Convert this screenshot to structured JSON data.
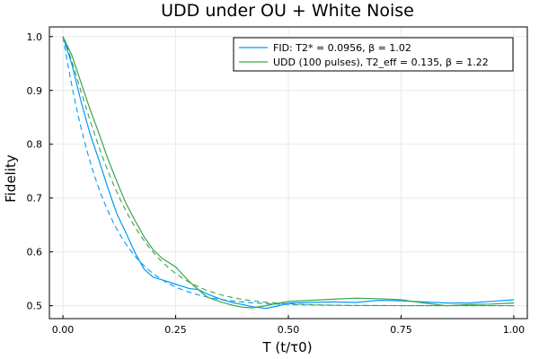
{
  "chart_data": {
    "type": "line",
    "title": "UDD under OU + White Noise",
    "xlabel": "T (t/τ0)",
    "ylabel": "Fidelity",
    "xlim": [
      -0.03,
      1.03
    ],
    "ylim": [
      0.476,
      1.018
    ],
    "xticks": [
      0.0,
      0.25,
      0.5,
      0.75,
      1.0
    ],
    "xtick_labels": [
      "0.00",
      "0.25",
      "0.50",
      "0.75",
      "1.00"
    ],
    "yticks": [
      0.5,
      0.6,
      0.7,
      0.8,
      0.9,
      1.0
    ],
    "ytick_labels": [
      "0.5",
      "0.6",
      "0.7",
      "0.8",
      "0.9",
      "1.0"
    ],
    "grid": true,
    "legend_position": "top-right",
    "series": [
      {
        "name": "FID: T2* = 0.0956, β = 1.02",
        "color": "#009af9",
        "style": "solid",
        "x": [
          0.0,
          0.02,
          0.04,
          0.06,
          0.08,
          0.1,
          0.12,
          0.14,
          0.16,
          0.18,
          0.2,
          0.22,
          0.25,
          0.28,
          0.3,
          0.32,
          0.35,
          0.38,
          0.4,
          0.42,
          0.45,
          0.48,
          0.5,
          0.55,
          0.6,
          0.65,
          0.7,
          0.75,
          0.8,
          0.85,
          0.9,
          0.95,
          1.0
        ],
        "values": [
          1.0,
          0.948,
          0.88,
          0.82,
          0.77,
          0.718,
          0.67,
          0.635,
          0.598,
          0.568,
          0.553,
          0.548,
          0.54,
          0.532,
          0.53,
          0.522,
          0.512,
          0.505,
          0.502,
          0.498,
          0.495,
          0.5,
          0.505,
          0.506,
          0.507,
          0.506,
          0.51,
          0.509,
          0.507,
          0.505,
          0.505,
          0.508,
          0.511
        ]
      },
      {
        "name": "UDD (100 pulses), T2_eff = 0.135, β = 1.22",
        "color": "#3da44d",
        "style": "solid",
        "x": [
          0.0,
          0.02,
          0.04,
          0.06,
          0.08,
          0.1,
          0.12,
          0.14,
          0.16,
          0.18,
          0.2,
          0.22,
          0.25,
          0.28,
          0.3,
          0.32,
          0.35,
          0.38,
          0.4,
          0.42,
          0.45,
          0.48,
          0.5,
          0.55,
          0.6,
          0.65,
          0.7,
          0.75,
          0.8,
          0.85,
          0.9,
          0.95,
          1.0
        ],
        "values": [
          1.0,
          0.965,
          0.915,
          0.865,
          0.82,
          0.772,
          0.73,
          0.69,
          0.658,
          0.628,
          0.604,
          0.588,
          0.572,
          0.545,
          0.53,
          0.516,
          0.507,
          0.5,
          0.497,
          0.496,
          0.5,
          0.505,
          0.508,
          0.51,
          0.512,
          0.514,
          0.513,
          0.511,
          0.505,
          0.5,
          0.502,
          0.503,
          0.505
        ]
      },
      {
        "color": "#009af9",
        "style": "dashed",
        "fit": {
          "T2": 0.0956,
          "beta": 1.02,
          "offset": 0.5,
          "amplitude": 0.5
        }
      },
      {
        "color": "#3da44d",
        "style": "dashed",
        "fit": {
          "T2": 0.135,
          "beta": 1.22,
          "offset": 0.5,
          "amplitude": 0.5
        }
      }
    ]
  }
}
